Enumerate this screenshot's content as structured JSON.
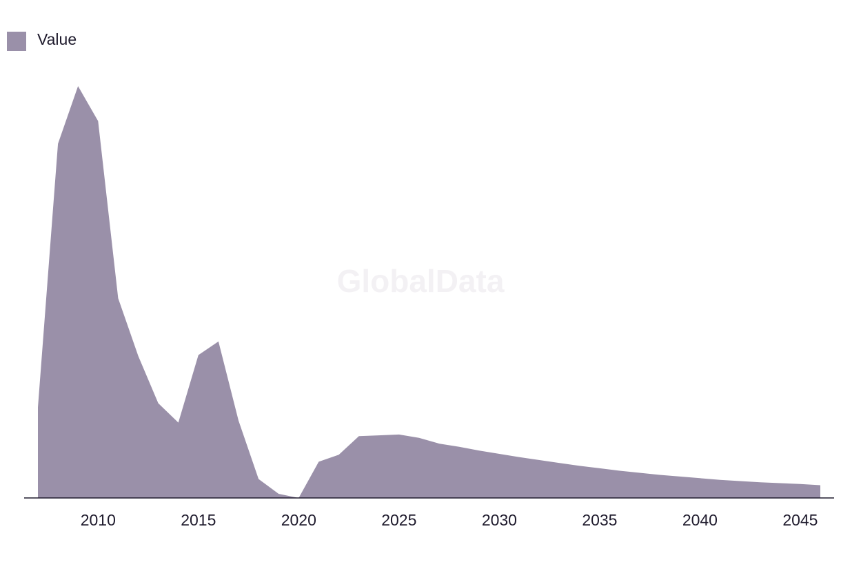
{
  "watermark": "GlobalData",
  "legend": {
    "label": "Value",
    "color": "#9a90a9"
  },
  "chart_data": {
    "type": "area",
    "title": "",
    "xlabel": "",
    "ylabel": "",
    "legend_position": "top-left",
    "grid": false,
    "x": [
      2007,
      2008,
      2009,
      2010,
      2011,
      2012,
      2013,
      2014,
      2015,
      2016,
      2017,
      2018,
      2019,
      2020,
      2021,
      2022,
      2023,
      2024,
      2025,
      2026,
      2027,
      2028,
      2029,
      2030,
      2031,
      2032,
      2033,
      2034,
      2035,
      2036,
      2037,
      2038,
      2039,
      2040,
      2041,
      2042,
      2043,
      2044,
      2045,
      2046
    ],
    "series": [
      {
        "name": "Value",
        "color": "#9a90a9",
        "values": [
          22,
          86,
          100,
          91.5,
          48.5,
          34.5,
          23,
          18.3,
          34.7,
          38,
          18.8,
          4.6,
          1,
          0,
          8.8,
          10.5,
          15,
          15.2,
          15.4,
          14.6,
          13.2,
          12.4,
          11.5,
          10.7,
          9.9,
          9.2,
          8.5,
          7.8,
          7.2,
          6.6,
          6.1,
          5.6,
          5.2,
          4.8,
          4.4,
          4.1,
          3.8,
          3.6,
          3.4,
          3.1
        ]
      }
    ],
    "x_ticks": [
      "2010",
      "2015",
      "2020",
      "2025",
      "2030",
      "2035",
      "2040",
      "2045"
    ],
    "xlim": [
      2007,
      2046
    ],
    "ylim": [
      0,
      100
    ]
  }
}
